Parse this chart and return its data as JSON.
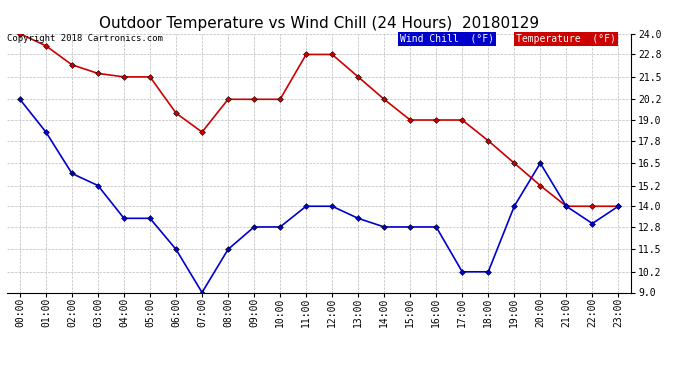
{
  "title": "Outdoor Temperature vs Wind Chill (24 Hours)  20180129",
  "copyright": "Copyright 2018 Cartronics.com",
  "background_color": "#ffffff",
  "plot_background": "#ffffff",
  "grid_color": "#bbbbbb",
  "hours": [
    "00:00",
    "01:00",
    "02:00",
    "03:00",
    "04:00",
    "05:00",
    "06:00",
    "07:00",
    "08:00",
    "09:00",
    "10:00",
    "11:00",
    "12:00",
    "13:00",
    "14:00",
    "15:00",
    "16:00",
    "17:00",
    "18:00",
    "19:00",
    "20:00",
    "21:00",
    "22:00",
    "23:00"
  ],
  "temperature": [
    24.0,
    23.3,
    22.2,
    21.7,
    21.5,
    21.5,
    19.4,
    18.3,
    20.2,
    20.2,
    20.2,
    22.8,
    22.8,
    21.5,
    20.2,
    19.0,
    19.0,
    19.0,
    17.8,
    16.5,
    15.2,
    14.0,
    14.0,
    14.0
  ],
  "wind_chill": [
    20.2,
    18.3,
    15.9,
    15.2,
    13.3,
    13.3,
    11.5,
    9.0,
    11.5,
    12.8,
    12.8,
    14.0,
    14.0,
    13.3,
    12.8,
    12.8,
    12.8,
    10.2,
    10.2,
    14.0,
    16.5,
    14.0,
    13.0,
    14.0
  ],
  "temp_color": "#cc0000",
  "wind_chill_color": "#0000cc",
  "ylim_min": 9.0,
  "ylim_max": 24.0,
  "ytick_labels": [
    "9.0",
    "10.2",
    "11.5",
    "12.8",
    "14.0",
    "15.2",
    "16.5",
    "17.8",
    "19.0",
    "20.2",
    "21.5",
    "22.8",
    "24.0"
  ],
  "ytick_values": [
    9.0,
    10.2,
    11.5,
    12.8,
    14.0,
    15.2,
    16.5,
    17.8,
    19.0,
    20.2,
    21.5,
    22.8,
    24.0
  ],
  "legend_wind_chill_bg": "#0000cc",
  "legend_temp_bg": "#cc0000",
  "legend_wind_chill_text": "Wind Chill  (°F)",
  "legend_temp_text": "Temperature  (°F)",
  "marker_style": "D",
  "marker_size": 3,
  "linewidth": 1.2,
  "title_fontsize": 11,
  "tick_fontsize": 7,
  "copyright_fontsize": 6.5,
  "legend_fontsize": 7
}
